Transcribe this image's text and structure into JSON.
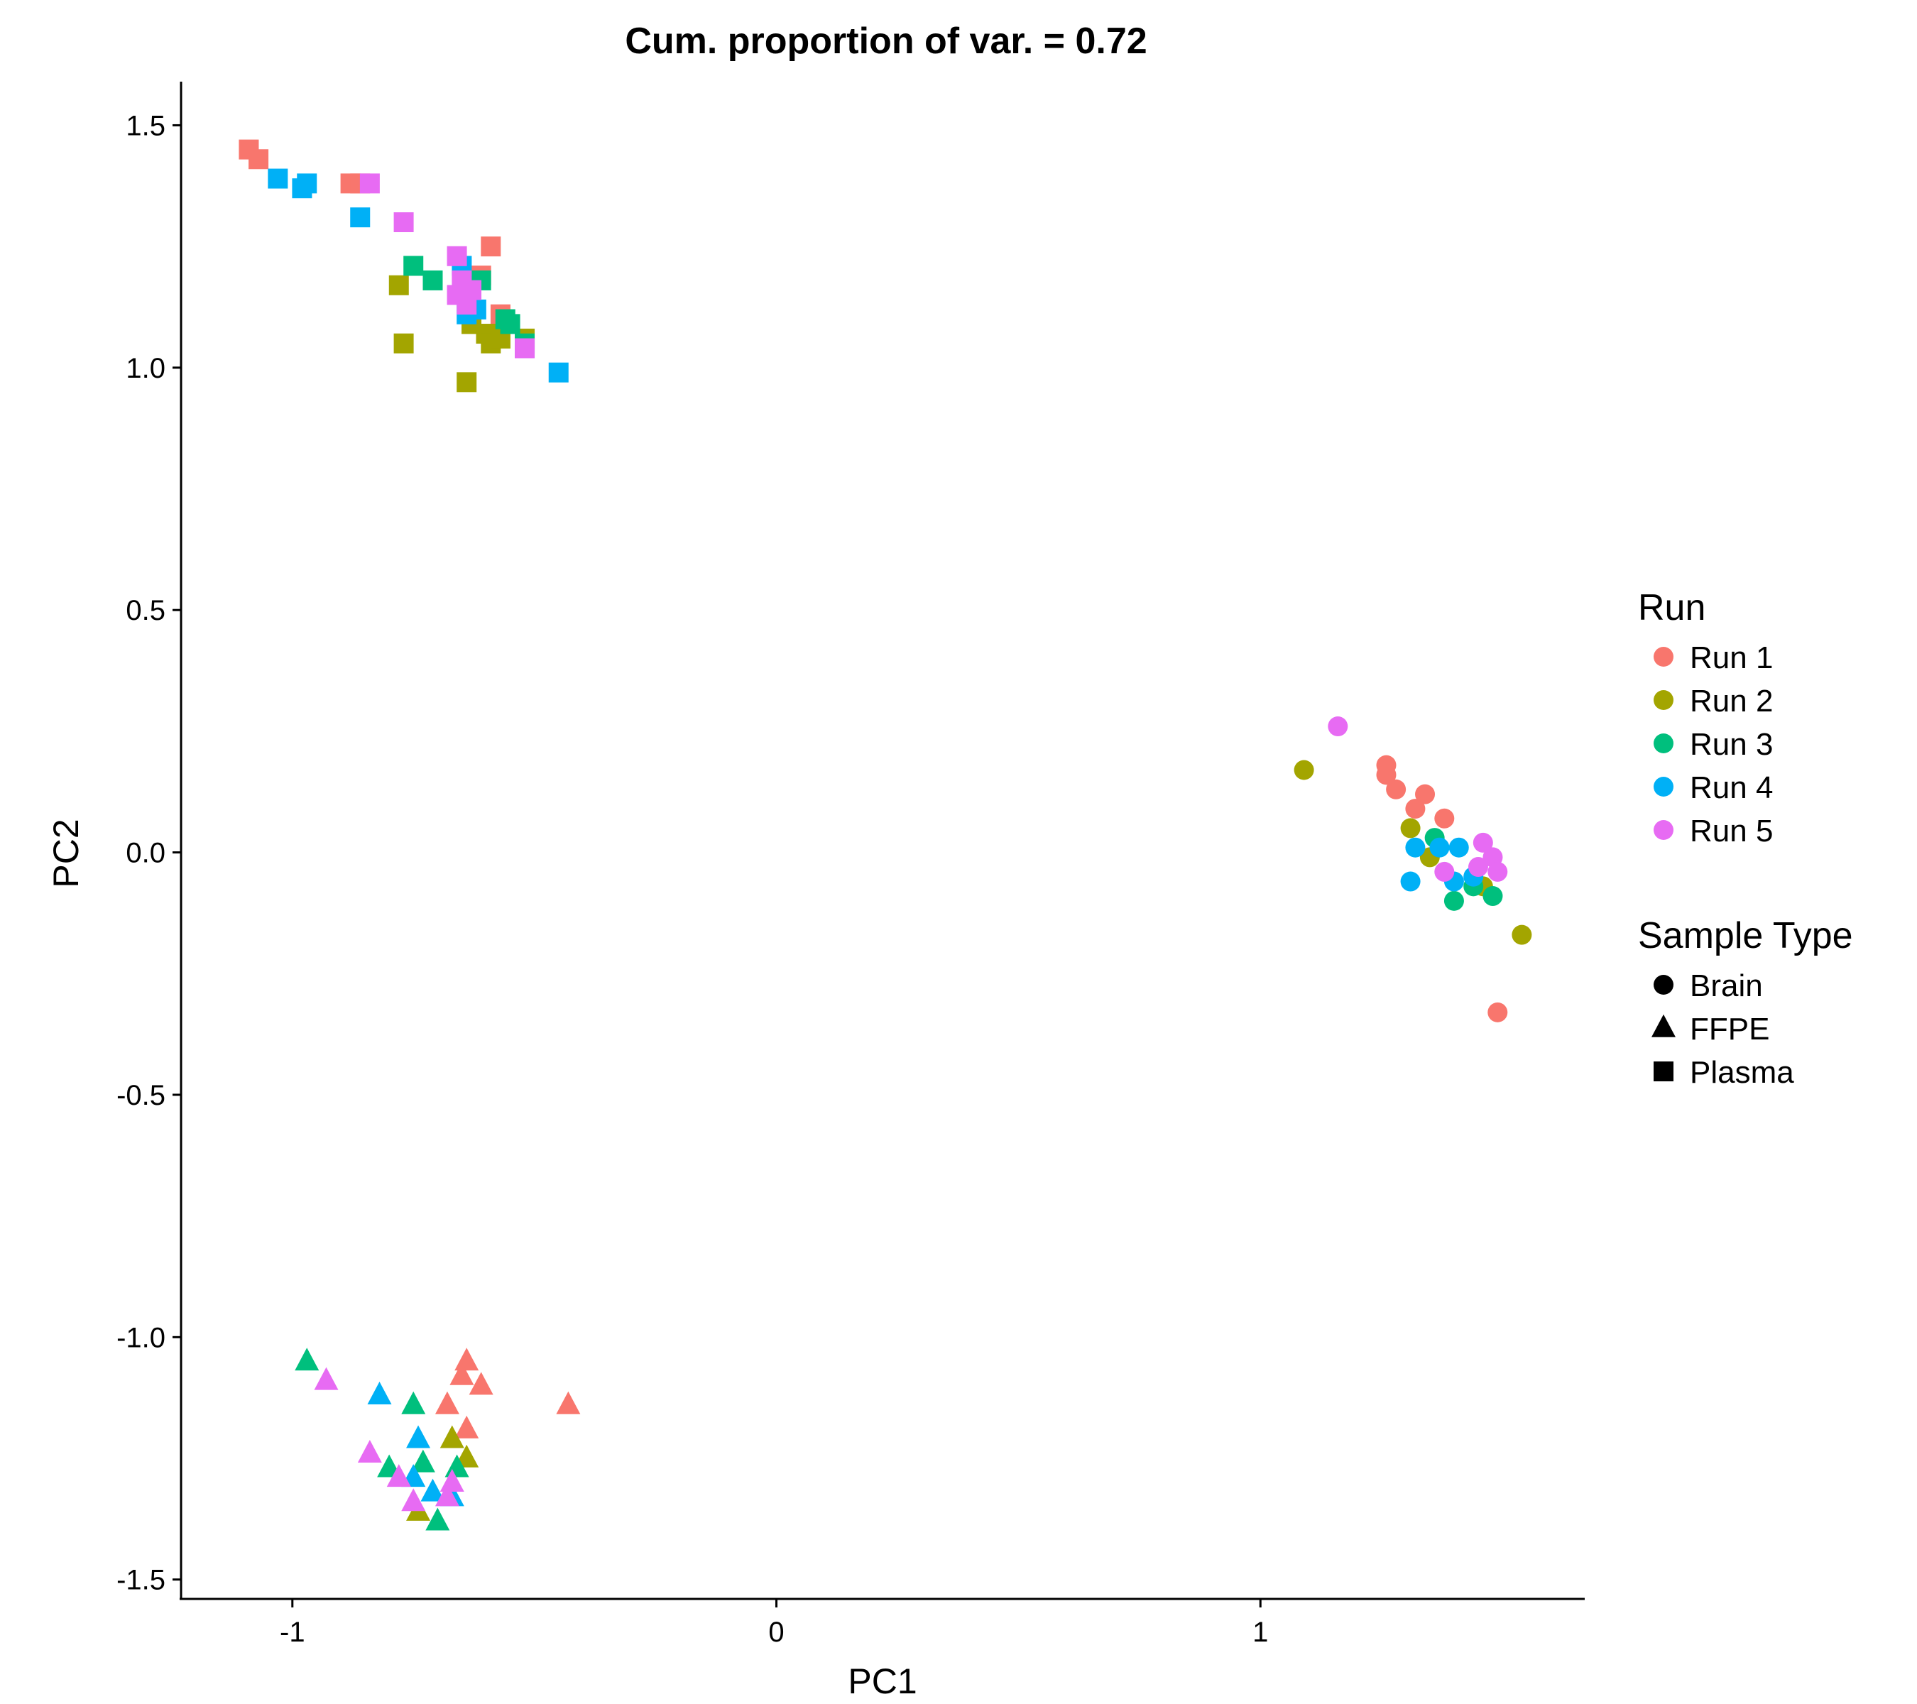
{
  "chart_data": {
    "type": "scatter",
    "title": "Cum. proportion of var. = 0.72",
    "xlabel": "PC1",
    "ylabel": "PC2",
    "xlim": [
      -1.23,
      1.67
    ],
    "ylim": [
      -1.54,
      1.59
    ],
    "xticks": [
      -1,
      0,
      1
    ],
    "xtick_labels": [
      "-1",
      "0",
      "1"
    ],
    "yticks": [
      1.5,
      1.0,
      0.5,
      0.0,
      -0.5,
      -1.0,
      -1.5
    ],
    "ytick_labels": [
      "1.5",
      "1.0",
      "0.5",
      "0.0",
      "-0.5",
      "-1.0",
      "-1.5"
    ],
    "grid": false,
    "legend_position": "right",
    "color_legend": {
      "title": "Run",
      "entries": [
        {
          "label": "Run 1",
          "color": "#F8766D"
        },
        {
          "label": "Run 2",
          "color": "#A3A500"
        },
        {
          "label": "Run 3",
          "color": "#00BF7D"
        },
        {
          "label": "Run 4",
          "color": "#00B0F6"
        },
        {
          "label": "Run 5",
          "color": "#E76BF3"
        }
      ]
    },
    "shape_legend": {
      "title": "Sample Type",
      "entries": [
        {
          "label": "Brain",
          "shape": "circle"
        },
        {
          "label": "FFPE",
          "shape": "triangle"
        },
        {
          "label": "Plasma",
          "shape": "square"
        }
      ]
    },
    "points": [
      {
        "x": -1.09,
        "y": 1.45,
        "run": "Run 1",
        "type": "Plasma"
      },
      {
        "x": -1.07,
        "y": 1.43,
        "run": "Run 1",
        "type": "Plasma"
      },
      {
        "x": -0.88,
        "y": 1.38,
        "run": "Run 1",
        "type": "Plasma"
      },
      {
        "x": -0.86,
        "y": 1.38,
        "run": "Run 1",
        "type": "Plasma"
      },
      {
        "x": -0.59,
        "y": 1.25,
        "run": "Run 1",
        "type": "Plasma"
      },
      {
        "x": -0.61,
        "y": 1.19,
        "run": "Run 1",
        "type": "Plasma"
      },
      {
        "x": -0.57,
        "y": 1.11,
        "run": "Run 1",
        "type": "Plasma"
      },
      {
        "x": -0.78,
        "y": 1.17,
        "run": "Run 2",
        "type": "Plasma"
      },
      {
        "x": -0.77,
        "y": 1.05,
        "run": "Run 2",
        "type": "Plasma"
      },
      {
        "x": -0.64,
        "y": 0.97,
        "run": "Run 2",
        "type": "Plasma"
      },
      {
        "x": -0.63,
        "y": 1.09,
        "run": "Run 2",
        "type": "Plasma"
      },
      {
        "x": -0.6,
        "y": 1.07,
        "run": "Run 2",
        "type": "Plasma"
      },
      {
        "x": -0.59,
        "y": 1.05,
        "run": "Run 2",
        "type": "Plasma"
      },
      {
        "x": -0.57,
        "y": 1.06,
        "run": "Run 2",
        "type": "Plasma"
      },
      {
        "x": -0.52,
        "y": 1.06,
        "run": "Run 2",
        "type": "Plasma"
      },
      {
        "x": -0.75,
        "y": 1.21,
        "run": "Run 3",
        "type": "Plasma"
      },
      {
        "x": -0.71,
        "y": 1.18,
        "run": "Run 3",
        "type": "Plasma"
      },
      {
        "x": -0.61,
        "y": 1.18,
        "run": "Run 3",
        "type": "Plasma"
      },
      {
        "x": -0.56,
        "y": 1.1,
        "run": "Run 3",
        "type": "Plasma"
      },
      {
        "x": -0.55,
        "y": 1.09,
        "run": "Run 3",
        "type": "Plasma"
      },
      {
        "x": -0.52,
        "y": 1.05,
        "run": "Run 3",
        "type": "Plasma"
      },
      {
        "x": -1.03,
        "y": 1.39,
        "run": "Run 4",
        "type": "Plasma"
      },
      {
        "x": -0.98,
        "y": 1.37,
        "run": "Run 4",
        "type": "Plasma"
      },
      {
        "x": -0.97,
        "y": 1.38,
        "run": "Run 4",
        "type": "Plasma"
      },
      {
        "x": -0.86,
        "y": 1.31,
        "run": "Run 4",
        "type": "Plasma"
      },
      {
        "x": -0.65,
        "y": 1.21,
        "run": "Run 4",
        "type": "Plasma"
      },
      {
        "x": -0.64,
        "y": 1.11,
        "run": "Run 4",
        "type": "Plasma"
      },
      {
        "x": -0.62,
        "y": 1.12,
        "run": "Run 4",
        "type": "Plasma"
      },
      {
        "x": -0.45,
        "y": 0.99,
        "run": "Run 4",
        "type": "Plasma"
      },
      {
        "x": -0.52,
        "y": 1.04,
        "run": "Run 4",
        "type": "Plasma"
      },
      {
        "x": -0.84,
        "y": 1.38,
        "run": "Run 5",
        "type": "Plasma"
      },
      {
        "x": -0.77,
        "y": 1.3,
        "run": "Run 5",
        "type": "Plasma"
      },
      {
        "x": -0.66,
        "y": 1.23,
        "run": "Run 5",
        "type": "Plasma"
      },
      {
        "x": -0.65,
        "y": 1.18,
        "run": "Run 5",
        "type": "Plasma"
      },
      {
        "x": -0.66,
        "y": 1.15,
        "run": "Run 5",
        "type": "Plasma"
      },
      {
        "x": -0.64,
        "y": 1.13,
        "run": "Run 5",
        "type": "Plasma"
      },
      {
        "x": -0.63,
        "y": 1.16,
        "run": "Run 5",
        "type": "Plasma"
      },
      {
        "x": -0.52,
        "y": 1.04,
        "run": "Run 5",
        "type": "Plasma"
      },
      {
        "x": -0.64,
        "y": -1.05,
        "run": "Run 1",
        "type": "FFPE"
      },
      {
        "x": -0.65,
        "y": -1.08,
        "run": "Run 1",
        "type": "FFPE"
      },
      {
        "x": -0.61,
        "y": -1.1,
        "run": "Run 1",
        "type": "FFPE"
      },
      {
        "x": -0.68,
        "y": -1.14,
        "run": "Run 1",
        "type": "FFPE"
      },
      {
        "x": -0.64,
        "y": -1.19,
        "run": "Run 1",
        "type": "FFPE"
      },
      {
        "x": -0.43,
        "y": -1.14,
        "run": "Run 1",
        "type": "FFPE"
      },
      {
        "x": -0.67,
        "y": -1.21,
        "run": "Run 2",
        "type": "FFPE"
      },
      {
        "x": -0.64,
        "y": -1.25,
        "run": "Run 2",
        "type": "FFPE"
      },
      {
        "x": -0.74,
        "y": -1.36,
        "run": "Run 2",
        "type": "FFPE"
      },
      {
        "x": -0.97,
        "y": -1.05,
        "run": "Run 3",
        "type": "FFPE"
      },
      {
        "x": -0.75,
        "y": -1.14,
        "run": "Run 3",
        "type": "FFPE"
      },
      {
        "x": -0.8,
        "y": -1.27,
        "run": "Run 3",
        "type": "FFPE"
      },
      {
        "x": -0.73,
        "y": -1.26,
        "run": "Run 3",
        "type": "FFPE"
      },
      {
        "x": -0.66,
        "y": -1.27,
        "run": "Run 3",
        "type": "FFPE"
      },
      {
        "x": -0.7,
        "y": -1.38,
        "run": "Run 3",
        "type": "FFPE"
      },
      {
        "x": -0.82,
        "y": -1.12,
        "run": "Run 4",
        "type": "FFPE"
      },
      {
        "x": -0.74,
        "y": -1.21,
        "run": "Run 4",
        "type": "FFPE"
      },
      {
        "x": -0.75,
        "y": -1.29,
        "run": "Run 4",
        "type": "FFPE"
      },
      {
        "x": -0.71,
        "y": -1.32,
        "run": "Run 4",
        "type": "FFPE"
      },
      {
        "x": -0.67,
        "y": -1.33,
        "run": "Run 4",
        "type": "FFPE"
      },
      {
        "x": -0.93,
        "y": -1.09,
        "run": "Run 5",
        "type": "FFPE"
      },
      {
        "x": -0.84,
        "y": -1.24,
        "run": "Run 5",
        "type": "FFPE"
      },
      {
        "x": -0.78,
        "y": -1.29,
        "run": "Run 5",
        "type": "FFPE"
      },
      {
        "x": -0.75,
        "y": -1.34,
        "run": "Run 5",
        "type": "FFPE"
      },
      {
        "x": -0.67,
        "y": -1.3,
        "run": "Run 5",
        "type": "FFPE"
      },
      {
        "x": -0.68,
        "y": -1.33,
        "run": "Run 5",
        "type": "FFPE"
      },
      {
        "x": 1.26,
        "y": 0.18,
        "run": "Run 1",
        "type": "Brain"
      },
      {
        "x": 1.26,
        "y": 0.16,
        "run": "Run 1",
        "type": "Brain"
      },
      {
        "x": 1.28,
        "y": 0.13,
        "run": "Run 1",
        "type": "Brain"
      },
      {
        "x": 1.34,
        "y": 0.12,
        "run": "Run 1",
        "type": "Brain"
      },
      {
        "x": 1.32,
        "y": 0.09,
        "run": "Run 1",
        "type": "Brain"
      },
      {
        "x": 1.38,
        "y": 0.07,
        "run": "Run 1",
        "type": "Brain"
      },
      {
        "x": 1.49,
        "y": -0.33,
        "run": "Run 1",
        "type": "Brain"
      },
      {
        "x": 1.09,
        "y": 0.17,
        "run": "Run 2",
        "type": "Brain"
      },
      {
        "x": 1.31,
        "y": 0.05,
        "run": "Run 2",
        "type": "Brain"
      },
      {
        "x": 1.35,
        "y": -0.01,
        "run": "Run 2",
        "type": "Brain"
      },
      {
        "x": 1.46,
        "y": -0.07,
        "run": "Run 2",
        "type": "Brain"
      },
      {
        "x": 1.54,
        "y": -0.17,
        "run": "Run 2",
        "type": "Brain"
      },
      {
        "x": 1.36,
        "y": 0.03,
        "run": "Run 3",
        "type": "Brain"
      },
      {
        "x": 1.4,
        "y": -0.1,
        "run": "Run 3",
        "type": "Brain"
      },
      {
        "x": 1.44,
        "y": -0.07,
        "run": "Run 3",
        "type": "Brain"
      },
      {
        "x": 1.48,
        "y": -0.09,
        "run": "Run 3",
        "type": "Brain"
      },
      {
        "x": 1.32,
        "y": 0.01,
        "run": "Run 4",
        "type": "Brain"
      },
      {
        "x": 1.31,
        "y": -0.06,
        "run": "Run 4",
        "type": "Brain"
      },
      {
        "x": 1.37,
        "y": 0.01,
        "run": "Run 4",
        "type": "Brain"
      },
      {
        "x": 1.41,
        "y": 0.01,
        "run": "Run 4",
        "type": "Brain"
      },
      {
        "x": 1.4,
        "y": -0.06,
        "run": "Run 4",
        "type": "Brain"
      },
      {
        "x": 1.44,
        "y": -0.05,
        "run": "Run 4",
        "type": "Brain"
      },
      {
        "x": 1.16,
        "y": 0.26,
        "run": "Run 5",
        "type": "Brain"
      },
      {
        "x": 1.46,
        "y": 0.02,
        "run": "Run 5",
        "type": "Brain"
      },
      {
        "x": 1.48,
        "y": -0.01,
        "run": "Run 5",
        "type": "Brain"
      },
      {
        "x": 1.38,
        "y": -0.04,
        "run": "Run 5",
        "type": "Brain"
      },
      {
        "x": 1.45,
        "y": -0.03,
        "run": "Run 5",
        "type": "Brain"
      },
      {
        "x": 1.49,
        "y": -0.04,
        "run": "Run 5",
        "type": "Brain"
      }
    ]
  }
}
